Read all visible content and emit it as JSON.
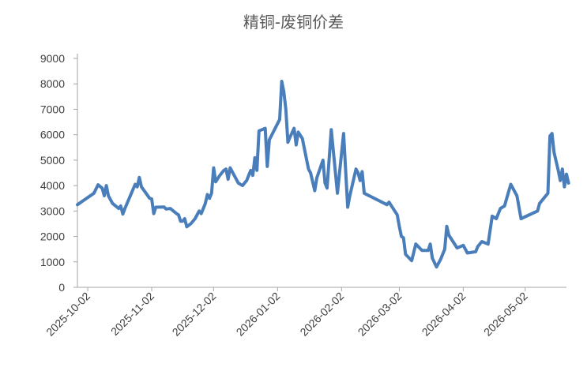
{
  "chart_data": {
    "type": "line",
    "title": "精铜-废铜价差",
    "xlabel": "",
    "ylabel": "",
    "ylim": [
      0,
      9000
    ],
    "yticks": [
      0,
      1000,
      2000,
      3000,
      4000,
      5000,
      6000,
      7000,
      8000,
      9000
    ],
    "xlim": [
      "2025-09-27",
      "2026-05-22"
    ],
    "xticks": [
      "2025-10-02",
      "2025-11-02",
      "2025-12-02",
      "2026-01-02",
      "2026-02-02",
      "2026-03-02",
      "2026-04-02",
      "2026-05-02"
    ],
    "grid": false,
    "legend": "none",
    "series": [
      {
        "color": "#4a7ebb",
        "points": [
          [
            "2025-09-27",
            3250
          ],
          [
            "2025-10-05",
            3700
          ],
          [
            "2025-10-07",
            4030
          ],
          [
            "2025-10-09",
            3900
          ],
          [
            "2025-10-10",
            3600
          ],
          [
            "2025-10-11",
            4000
          ],
          [
            "2025-10-12",
            3600
          ],
          [
            "2025-10-14",
            3300
          ],
          [
            "2025-10-17",
            3100
          ],
          [
            "2025-10-18",
            3200
          ],
          [
            "2025-10-19",
            2880
          ],
          [
            "2025-10-20",
            3100
          ],
          [
            "2025-10-25",
            4050
          ],
          [
            "2025-10-26",
            3950
          ],
          [
            "2025-10-27",
            4320
          ],
          [
            "2025-10-28",
            3950
          ],
          [
            "2025-11-01",
            3500
          ],
          [
            "2025-11-02",
            3480
          ],
          [
            "2025-11-03",
            2900
          ],
          [
            "2025-11-04",
            3150
          ],
          [
            "2025-11-08",
            3160
          ],
          [
            "2025-11-09",
            3080
          ],
          [
            "2025-11-11",
            3100
          ],
          [
            "2025-11-14",
            2900
          ],
          [
            "2025-11-15",
            2850
          ],
          [
            "2025-11-16",
            2600
          ],
          [
            "2025-11-17",
            2600
          ],
          [
            "2025-11-18",
            2700
          ],
          [
            "2025-11-19",
            2380
          ],
          [
            "2025-11-21",
            2500
          ],
          [
            "2025-11-23",
            2700
          ],
          [
            "2025-11-25",
            3000
          ],
          [
            "2025-11-26",
            2900
          ],
          [
            "2025-11-28",
            3300
          ],
          [
            "2025-11-29",
            3650
          ],
          [
            "2025-11-30",
            3500
          ],
          [
            "2025-12-01",
            3700
          ],
          [
            "2025-12-02",
            4700
          ],
          [
            "2025-12-03",
            4150
          ],
          [
            "2025-12-05",
            4400
          ],
          [
            "2025-12-07",
            4600
          ],
          [
            "2025-12-08",
            4650
          ],
          [
            "2025-12-09",
            4250
          ],
          [
            "2025-12-10",
            4700
          ],
          [
            "2025-12-11",
            4550
          ],
          [
            "2025-12-14",
            4100
          ],
          [
            "2025-12-16",
            4000
          ],
          [
            "2025-12-18",
            4200
          ],
          [
            "2025-12-20",
            4600
          ],
          [
            "2025-12-21",
            4400
          ],
          [
            "2025-12-22",
            5100
          ],
          [
            "2025-12-23",
            4600
          ],
          [
            "2025-12-24",
            6150
          ],
          [
            "2025-12-27",
            6250
          ],
          [
            "2025-12-28",
            4750
          ],
          [
            "2025-12-29",
            5800
          ],
          [
            "2026-01-03",
            6600
          ],
          [
            "2026-01-04",
            8100
          ],
          [
            "2026-01-05",
            7700
          ],
          [
            "2026-01-06",
            7000
          ],
          [
            "2026-01-07",
            5700
          ],
          [
            "2026-01-08",
            5900
          ],
          [
            "2026-01-10",
            6250
          ],
          [
            "2026-01-11",
            5600
          ],
          [
            "2026-01-12",
            6100
          ],
          [
            "2026-01-14",
            5850
          ],
          [
            "2026-01-17",
            4650
          ],
          [
            "2026-01-18",
            4500
          ],
          [
            "2026-01-20",
            3800
          ],
          [
            "2026-01-21",
            4300
          ],
          [
            "2026-01-24",
            5000
          ],
          [
            "2026-01-25",
            4100
          ],
          [
            "2026-01-26",
            3900
          ],
          [
            "2026-01-28",
            6200
          ],
          [
            "2026-01-31",
            3700
          ],
          [
            "2026-02-03",
            6050
          ],
          [
            "2026-02-05",
            3150
          ],
          [
            "2026-02-06",
            3600
          ],
          [
            "2026-02-09",
            4650
          ],
          [
            "2026-02-10",
            4500
          ],
          [
            "2026-02-11",
            4200
          ],
          [
            "2026-02-12",
            4550
          ],
          [
            "2026-02-13",
            3700
          ],
          [
            "2026-02-24",
            3250
          ],
          [
            "2026-02-25",
            3350
          ],
          [
            "2026-03-01",
            2850
          ],
          [
            "2026-03-02",
            2400
          ],
          [
            "2026-03-03",
            2000
          ],
          [
            "2026-03-04",
            1950
          ],
          [
            "2026-03-05",
            1300
          ],
          [
            "2026-03-08",
            1050
          ],
          [
            "2026-03-10",
            1700
          ],
          [
            "2026-03-13",
            1450
          ],
          [
            "2026-03-16",
            1450
          ],
          [
            "2026-03-17",
            1700
          ],
          [
            "2026-03-18",
            1150
          ],
          [
            "2026-03-20",
            800
          ],
          [
            "2026-03-22",
            1100
          ],
          [
            "2026-03-24",
            1500
          ],
          [
            "2026-03-25",
            2400
          ],
          [
            "2026-03-26",
            2050
          ],
          [
            "2026-03-30",
            1550
          ],
          [
            "2026-04-02",
            1650
          ],
          [
            "2026-04-04",
            1350
          ],
          [
            "2026-04-08",
            1400
          ],
          [
            "2026-04-09",
            1600
          ],
          [
            "2026-04-11",
            1800
          ],
          [
            "2026-04-14",
            1700
          ],
          [
            "2026-04-16",
            2800
          ],
          [
            "2026-04-18",
            2700
          ],
          [
            "2026-04-20",
            3100
          ],
          [
            "2026-04-22",
            3200
          ],
          [
            "2026-04-25",
            4050
          ],
          [
            "2026-04-28",
            3600
          ],
          [
            "2026-04-30",
            2700
          ],
          [
            "2026-05-08",
            3000
          ],
          [
            "2026-05-09",
            3300
          ],
          [
            "2026-05-13",
            3700
          ],
          [
            "2026-05-14",
            5950
          ],
          [
            "2026-05-15",
            6050
          ],
          [
            "2026-05-16",
            5300
          ],
          [
            "2026-05-18",
            4600
          ],
          [
            "2026-05-19",
            4200
          ],
          [
            "2026-05-20",
            4650
          ],
          [
            "2026-05-21",
            3950
          ],
          [
            "2026-05-22",
            4450
          ],
          [
            "2026-05-23",
            4100
          ]
        ]
      }
    ]
  }
}
